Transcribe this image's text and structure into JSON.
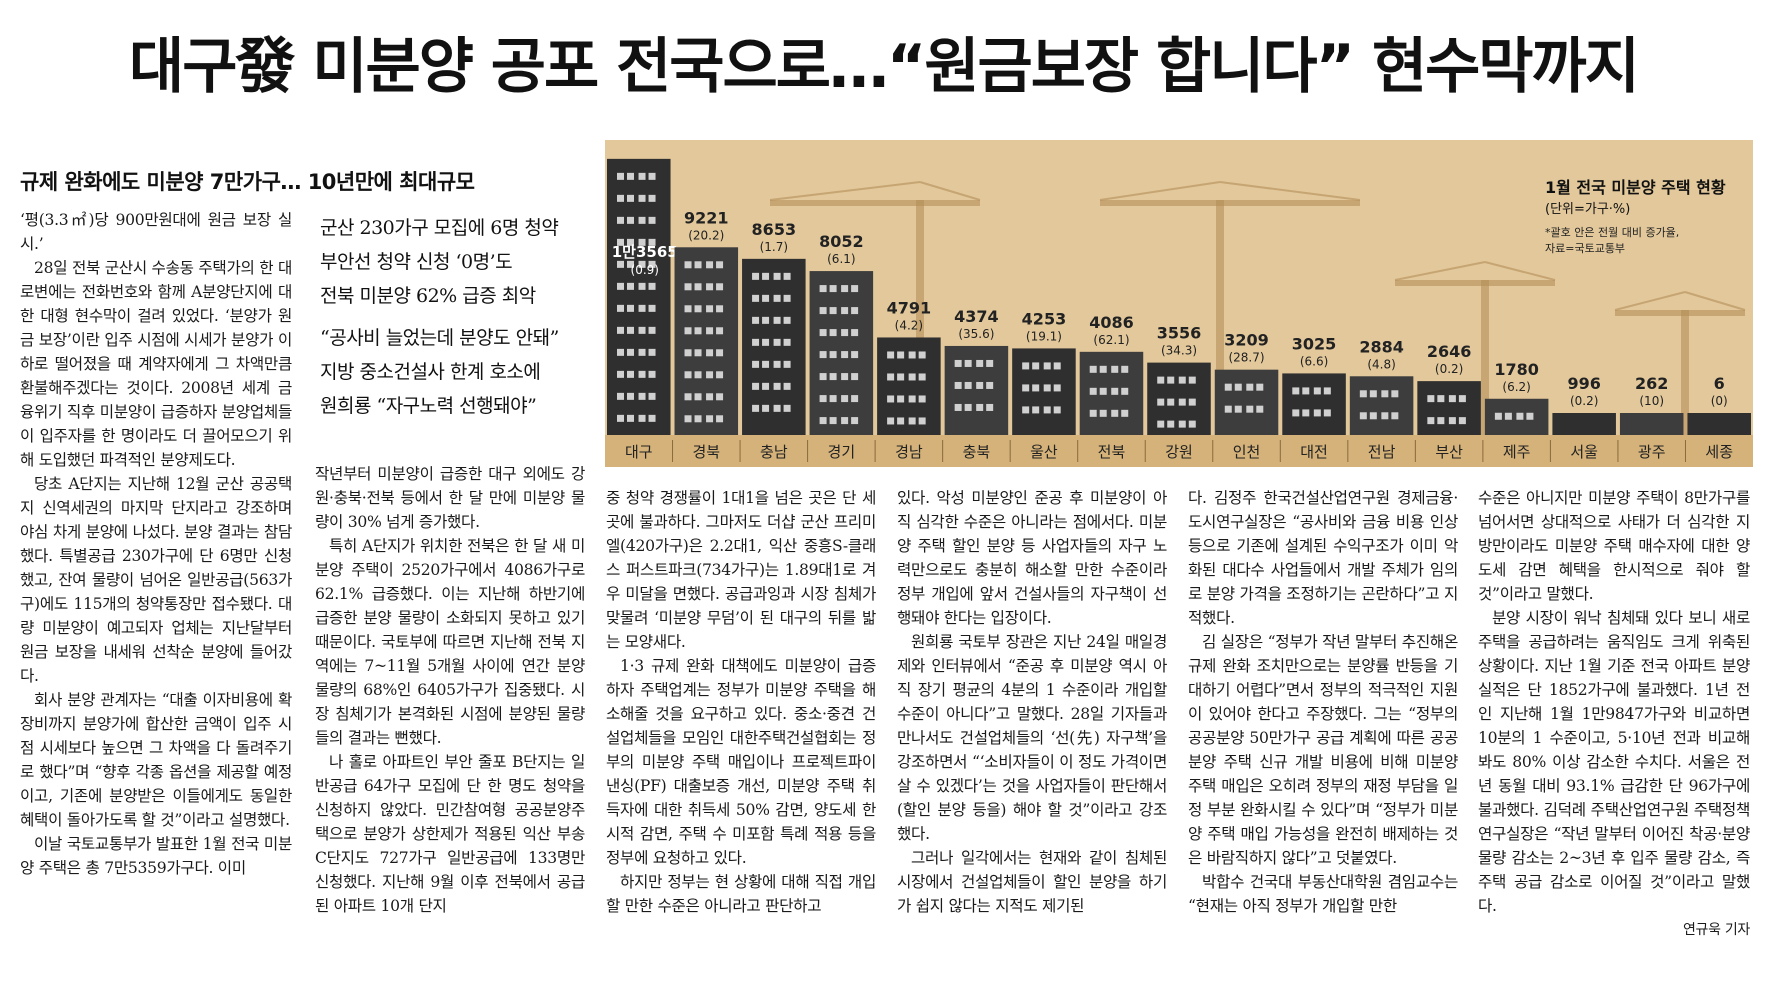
{
  "headline": "대구發 미분양 공포 전국으로…“원금보장 합니다” 현수막까지",
  "subheadline": "규제 완화에도 미분양 7만가구… 10년만에 최대규모",
  "sidebar_box": {
    "group1": [
      "군산 230가구 모집에 6명 청약",
      "부안선 청약 신청 ‘0명’도",
      "전북 미분양 62% 급증 최악"
    ],
    "group2": [
      "“공사비 늘었는데 분양도 안돼”",
      "지방 중소건설사 한계 호소에",
      "원희룡 “자구노력 선행돼야”"
    ]
  },
  "chart_data": {
    "type": "bar",
    "title": "1월 전국 미분양 주택 현황",
    "unit_note": "(단위=가구·%)",
    "footnote_1": "*괄호 안은 전월 대비 증가율,",
    "footnote_2": "자료=국토교통부",
    "categories": [
      "대구",
      "경북",
      "충남",
      "경기",
      "경남",
      "충북",
      "울산",
      "전북",
      "강원",
      "인천",
      "대전",
      "전남",
      "부산",
      "제주",
      "서울",
      "광주",
      "세종"
    ],
    "values": [
      13565,
      9221,
      8653,
      8052,
      4791,
      4374,
      4253,
      4086,
      3556,
      3209,
      3025,
      2884,
      2646,
      1780,
      996,
      262,
      6
    ],
    "value_labels": [
      "1만3565",
      "9221",
      "8653",
      "8052",
      "4791",
      "4374",
      "4253",
      "4086",
      "3556",
      "3209",
      "3025",
      "2884",
      "2646",
      "1780",
      "996",
      "262",
      "6"
    ],
    "change_labels": [
      "(0.9)",
      "(20.2)",
      "(1.7)",
      "(6.1)",
      "(4.2)",
      "(35.6)",
      "(19.1)",
      "(62.1)",
      "(34.3)",
      "(28.7)",
      "(6.6)",
      "(4.8)",
      "(0.2)",
      "(6.2)",
      "(0.2)",
      "(10)",
      "(0)"
    ],
    "colors": {
      "sky": "#e2c89b",
      "building": "#2f2f2f",
      "building_alt": "#3d3d3d",
      "window": "#d0d0d0",
      "axis_bg": "#d4b27a",
      "crane": "#b08a52"
    }
  },
  "columns": [
    {
      "paras": [
        "‘평(3.3㎡)당 900만원대에 원금 보장 실시.’",
        "28일 전북 군산시 수송동 주택가의 한 대로변에는 전화번호와 함께 A분양단지에 대한 대형 현수막이 걸려 있었다. ‘분양가 원금 보장’이란 입주 시점에 시세가 분양가 이하로 떨어졌을 때 계약자에게 그 차액만큼 환불해주겠다는 것이다. 2008년 세계 금융위기 직후 미분양이 급증하자 분양업체들이 입주자를 한 명이라도 더 끌어모으기 위해 도입했던 파격적인 분양제도다.",
        "당초 A단지는 지난해 12월 군산 공공택지 신역세권의 마지막 단지라고 강조하며 야심 차게 분양에 나섰다. 분양 결과는 참담했다. 특별공급 230가구에 단 6명만 신청했고, 잔여 물량이 넘어온 일반공급(563가구)에도 115개의 청약통장만 접수됐다. 대량 미분양이 예고되자 업체는 지난달부터 원금 보장을 내세워 선착순 분양에 들어갔다.",
        "회사 분양 관계자는 “대출 이자비용에 확장비까지 분양가에 합산한 금액이 입주 시점 시세보다 높으면 그 차액을 다 돌려주기로 했다”며 “향후 각종 옵션을 제공할 예정이고, 기존에 분양받은 이들에게도 동일한 혜택이 돌아가도록 할 것”이라고 설명했다.",
        "이날 국토교통부가 발표한 1월 전국 미분양 주택은 총 7만5359가구다. 이미"
      ]
    },
    {
      "paras": [
        "작년부터 미분양이 급증한 대구 외에도 강원·충북·전북 등에서 한 달 만에 미분양 물량이 30% 넘게 증가했다.",
        "특히 A단지가 위치한 전북은 한 달 새 미분양 주택이 2520가구에서 4086가구로 62.1% 급증했다. 이는 지난해 하반기에 급증한 분양 물량이 소화되지 못하고 있기 때문이다. 국토부에 따르면 지난해 전북 지역에는 7~11월 5개월 사이에 연간 분양 물량의 68%인 6405가구가 집중됐다. 시장 침체기가 본격화된 시점에 분양된 물량들의 결과는 뻔했다.",
        "나 홀로 아파트인 부안 줄포 B단지는 일반공급 64가구 모집에 단 한 명도 청약을 신청하지 않았다. 민간참여형 공공분양주택으로 분양가 상한제가 적용된 익산 부송 C단지도 727가구 일반공급에 133명만 신청했다. 지난해 9월 이후 전북에서 공급된 아파트 10개 단지"
      ]
    },
    {
      "paras": [
        "중 청약 경쟁률이 1대1을 넘은 곳은 단 세 곳에 불과하다. 그마저도 더샵 군산 프리미엘(420가구)은 2.2대1, 익산 중흥S-클래스 퍼스트파크(734가구)는 1.89대1로 겨우 미달을 면했다. 공급과잉과 시장 침체가 맞물려 ‘미분양 무덤’이 된 대구의 뒤를 밟는 모양새다.",
        "1·3 규제 완화 대책에도 미분양이 급증하자 주택업계는 정부가 미분양 주택을 해소해줄 것을 요구하고 있다. 중소·중견 건설업체들을 모임인 대한주택건설협회는 정부의 미분양 주택 매입이나 프로젝트파이낸싱(PF) 대출보증 개선, 미분양 주택 취득자에 대한 취득세 50% 감면, 양도세 한시적 감면, 주택 수 미포함 특례 적용 등을 정부에 요청하고 있다.",
        "하지만 정부는 현 상황에 대해 직접 개입할 만한 수준은 아니라고 판단하고"
      ]
    },
    {
      "paras": [
        "있다. 악성 미분양인 준공 후 미분양이 아직 심각한 수준은 아니라는 점에서다. 미분양 주택 할인 분양 등 사업자들의 자구 노력만으로도 충분히 해소할 만한 수준이라 정부 개입에 앞서 건설사들의 자구책이 선행돼야 한다는 입장이다.",
        "원희룡 국토부 장관은 지난 24일 매일경제와 인터뷰에서 “준공 후 미분양 역시 아직 장기 평균의 4분의 1 수준이라 개입할 수준이 아니다”고 말했다. 28일 기자들과 만나서도 건설업체들의 ‘선(先) 자구책’을 강조하면서 “‘소비자들이 이 정도 가격이면 살 수 있겠다’는 것을 사업자들이 판단해서 (할인 분양 등을) 해야 할 것”이라고 강조했다.",
        "그러나 일각에서는 현재와 같이 침체된 시장에서 건설업체들이 할인 분양을 하기가 쉽지 않다는 지적도 제기된"
      ]
    },
    {
      "paras": [
        "다. 김정주 한국건설산업연구원 경제금융·도시연구실장은 “공사비와 금융 비용 인상 등으로 기존에 설계된 수익구조가 이미 악화된 대다수 사업들에서 개발 주체가 임의로 분양 가격을 조정하기는 곤란하다”고 지적했다.",
        "김 실장은 “정부가 작년 말부터 추진해온 규제 완화 조치만으로는 분양률 반등을 기대하기 어렵다”면서 정부의 적극적인 지원이 있어야 한다고 주장했다. 그는 “정부의 공공분양 50만가구 공급 계획에 따른 공공분양 주택 신규 개발 비용에 비해 미분양 주택 매입은 오히려 정부의 재정 부담을 일정 부분 완화시킬 수 있다”며 “정부가 미분양 주택 매입 가능성을 완전히 배제하는 것은 바람직하지 않다”고 덧붙였다.",
        "박합수 건국대 부동산대학원 겸임교수는 “현재는 아직 정부가 개입할 만한"
      ]
    },
    {
      "paras": [
        "수준은 아니지만 미분양 주택이 8만가구를 넘어서면 상대적으로 사태가 더 심각한 지방만이라도 미분양 주택 매수자에 대한 양도세 감면 혜택을 한시적으로 줘야 할 것”이라고 말했다.",
        "분양 시장이 워낙 침체돼 있다 보니 새로 주택을 공급하려는 움직임도 크게 위축된 상황이다. 지난 1월 기준 전국 아파트 분양 실적은 단 1852가구에 불과했다. 1년 전인 지난해 1월 1만9847가구와 비교하면 10분의 1 수준이고, 5·10년 전과 비교해 봐도 80% 이상 감소한 수치다. 서울은 전년 동월 대비 93.1% 급감한 단 96가구에 불과했다. 김덕례 주택산업연구원 주택정책연구실장은 “작년 말부터 이어진 착공·분양 물량 감소는 2~3년 후 입주 물량 감소, 즉 주택 공급 감소로 이어질 것”이라고 말했다."
      ]
    }
  ],
  "byline": "연규욱 기자"
}
